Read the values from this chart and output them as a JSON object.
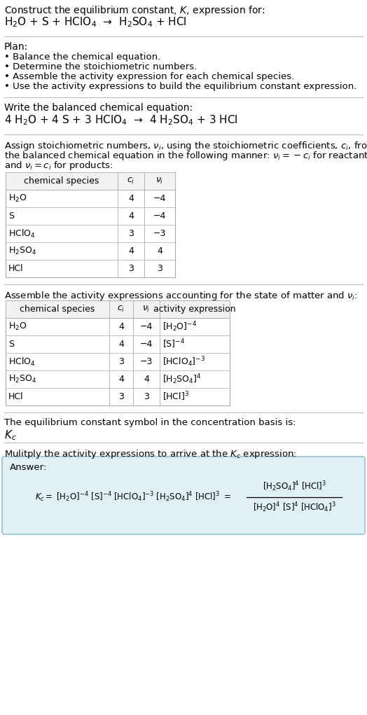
{
  "bg_color": "#ffffff",
  "title_line1": "Construct the equilibrium constant, $K$, expression for:",
  "reaction_unbalanced": "H$_2$O + S + HClO$_4$  →  H$_2$SO$_4$ + HCl",
  "plan_header": "Plan:",
  "plan_bullets": [
    "• Balance the chemical equation.",
    "• Determine the stoichiometric numbers.",
    "• Assemble the activity expression for each chemical species.",
    "• Use the activity expressions to build the equilibrium constant expression."
  ],
  "balanced_header": "Write the balanced chemical equation:",
  "reaction_balanced": "4 H$_2$O + 4 S + 3 HClO$_4$  →  4 H$_2$SO$_4$ + 3 HCl",
  "stoich_lines": [
    "Assign stoichiometric numbers, $\\nu_i$, using the stoichiometric coefficients, $c_i$, from",
    "the balanced chemical equation in the following manner: $\\nu_i = -c_i$ for reactants",
    "and $\\nu_i = c_i$ for products:"
  ],
  "table1_cols": [
    "chemical species",
    "$c_i$",
    "$\\nu_i$"
  ],
  "table1_data": [
    [
      "H$_2$O",
      "4",
      "−4"
    ],
    [
      "S",
      "4",
      "−4"
    ],
    [
      "HClO$_4$",
      "3",
      "−3"
    ],
    [
      "H$_2$SO$_4$",
      "4",
      "4"
    ],
    [
      "HCl",
      "3",
      "3"
    ]
  ],
  "activity_header": "Assemble the activity expressions accounting for the state of matter and $\\nu_i$:",
  "table2_cols": [
    "chemical species",
    "$c_i$",
    "$\\nu_i$",
    "activity expression"
  ],
  "table2_data": [
    [
      "H$_2$O",
      "4",
      "−4",
      "[H$_2$O]$^{-4}$"
    ],
    [
      "S",
      "4",
      "−4",
      "[S]$^{-4}$"
    ],
    [
      "HClO$_4$",
      "3",
      "−3",
      "[HClO$_4$]$^{-3}$"
    ],
    [
      "H$_2$SO$_4$",
      "4",
      "4",
      "[H$_2$SO$_4$]$^4$"
    ],
    [
      "HCl",
      "3",
      "3",
      "[HCl]$^3$"
    ]
  ],
  "kc_text": "The equilibrium constant symbol in the concentration basis is:",
  "kc_symbol": "$K_c$",
  "multiply_text": "Mulitply the activity expressions to arrive at the $K_c$ expression:",
  "answer_label": "Answer:",
  "answer_box_color": "#dff0f7",
  "answer_box_border": "#88b8d0",
  "separator_color": "#bbbbbb",
  "table_border_color": "#aaaaaa",
  "table_header_bg": "#f2f2f2"
}
